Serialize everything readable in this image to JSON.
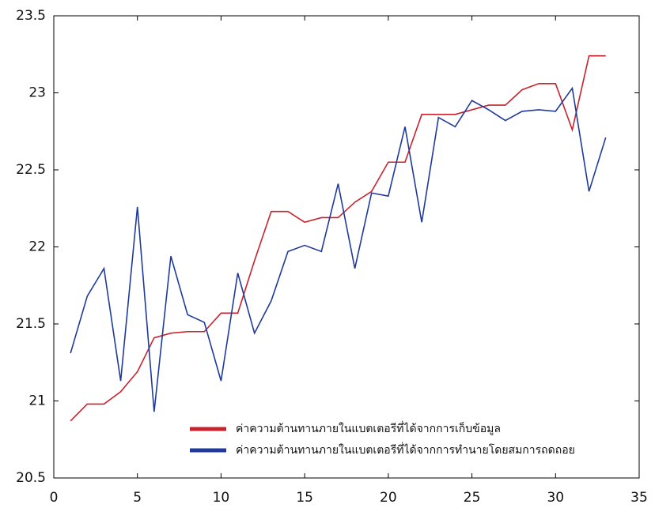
{
  "chart_data": {
    "type": "line",
    "x": [
      1,
      2,
      3,
      4,
      5,
      6,
      7,
      8,
      9,
      10,
      11,
      12,
      13,
      14,
      15,
      16,
      17,
      18,
      19,
      20,
      21,
      22,
      23,
      24,
      25,
      26,
      27,
      28,
      29,
      30,
      31,
      32,
      33
    ],
    "series": [
      {
        "name": "ค่าความต้านทานภายในแบตเตอรีที่ได้จากการเก็บข้อมูล",
        "color": "#c8232c",
        "values": [
          20.87,
          20.98,
          20.98,
          21.06,
          21.19,
          21.41,
          21.44,
          21.45,
          21.45,
          21.57,
          21.57,
          21.91,
          22.23,
          22.23,
          22.16,
          22.19,
          22.19,
          22.29,
          22.36,
          22.55,
          22.55,
          22.86,
          22.86,
          22.86,
          22.89,
          22.92,
          22.92,
          23.02,
          23.06,
          23.06,
          22.76,
          23.24,
          23.24
        ]
      },
      {
        "name": "ค่าความต้านทานภายในแบตเตอรีที่ได้จากการทำนายโดยสมการถดถอย",
        "color": "#1f3a9c",
        "values": [
          21.31,
          21.68,
          21.86,
          21.13,
          22.26,
          20.93,
          21.94,
          21.56,
          21.51,
          21.13,
          21.83,
          21.44,
          21.65,
          21.97,
          22.01,
          21.97,
          22.41,
          21.86,
          22.35,
          22.33,
          22.78,
          22.16,
          22.84,
          22.78,
          22.95,
          22.89,
          22.82,
          22.88,
          22.89,
          22.88,
          23.03,
          22.36,
          22.71
        ]
      }
    ],
    "xlim": [
      0,
      35
    ],
    "xticks": [
      0,
      5,
      10,
      15,
      20,
      25,
      30,
      35
    ],
    "ylim": [
      20.5,
      23.5
    ],
    "yticks": [
      20.5,
      21,
      21.5,
      22,
      22.5,
      23,
      23.5
    ],
    "legend": "lower right"
  }
}
